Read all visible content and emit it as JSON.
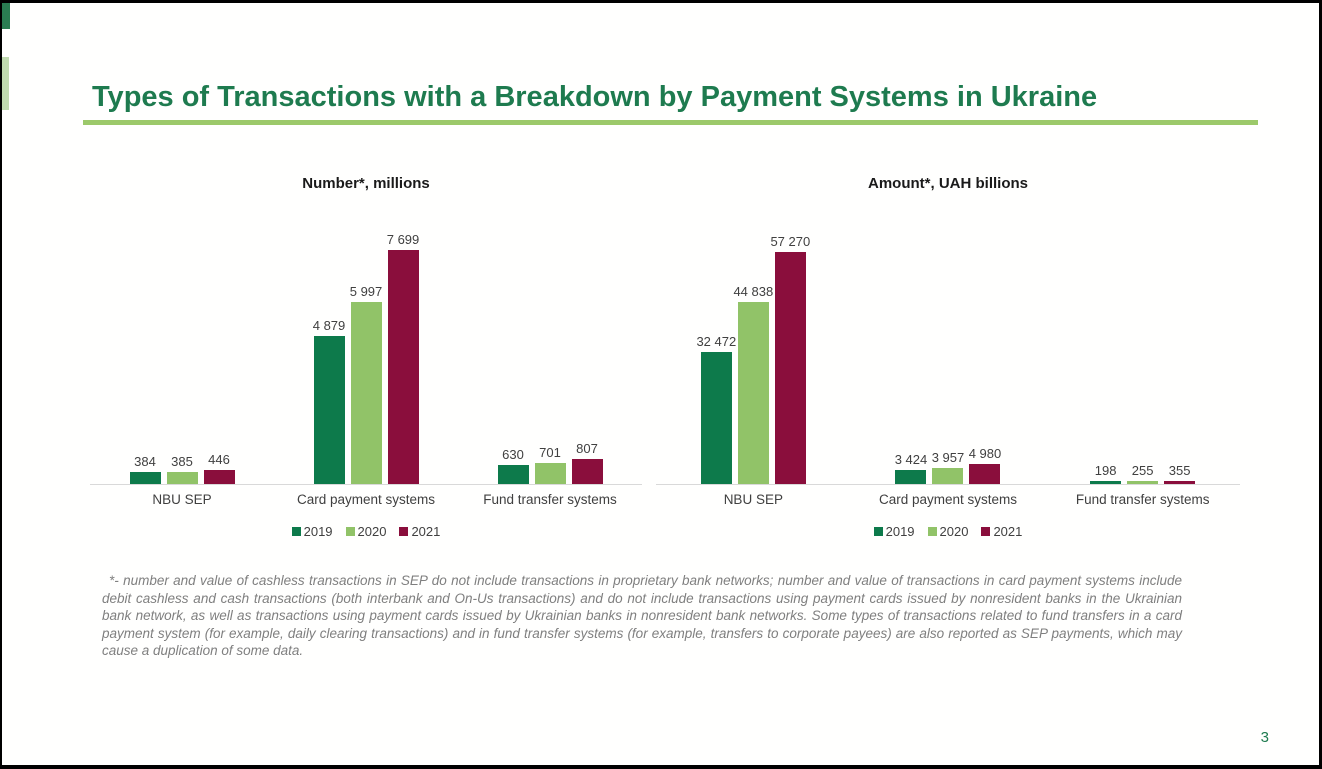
{
  "slide": {
    "title": "Types of Transactions with a Breakdown by Payment Systems in Ukraine",
    "page_number": "3",
    "footnote": "*- number and value of cashless transactions in SEP do not include transactions in proprietary bank networks; number and value of transactions in card payment systems include debit cashless and cash transactions (both interbank and On-Us transactions) and do not include transactions using payment cards issued by nonresident banks in the Ukrainian bank network, as well as transactions using payment cards issued by Ukrainian banks in nonresident bank networks. Some types of transactions related to fund transfers in a card payment system (for example, daily clearing transactions) and in fund transfer systems (for example, transfers to corporate payees) are also reported as SEP payments, which may cause a duplication of some data."
  },
  "colors": {
    "title_green": "#1e7b4f",
    "underline_green": "#9cc96a",
    "corner_accent_green": "#2a7d52",
    "edge_accent_green": "#c0dab0",
    "series_2019": "#0d7a4b",
    "series_2020": "#91c368",
    "series_2021": "#8a0e3c",
    "axis_line": "#d9d9d9",
    "label_gray": "#404040",
    "footnote_gray": "#7f7f7f"
  },
  "chart_data": [
    {
      "type": "bar",
      "id": "number-chart",
      "title": "Number*, millions",
      "categories": [
        "NBU SEP",
        "Card payment systems",
        "Fund transfer systems"
      ],
      "series": [
        {
          "name": "2019",
          "color": "#0d7a4b",
          "values": [
            384,
            4879,
            630
          ],
          "labels": [
            "384",
            "4 879",
            "630"
          ]
        },
        {
          "name": "2020",
          "color": "#91c368",
          "values": [
            385,
            5997,
            701
          ],
          "labels": [
            "385",
            "5 997",
            "701"
          ]
        },
        {
          "name": "2021",
          "color": "#8a0e3c",
          "values": [
            446,
            7699,
            807
          ],
          "labels": [
            "446",
            "7 699",
            "807"
          ]
        }
      ],
      "xlabel": "",
      "ylabel": "",
      "ylim": [
        0,
        8000
      ],
      "grid": false,
      "legend_position": "bottom"
    },
    {
      "type": "bar",
      "id": "amount-chart",
      "title": "Amount*, UAH billions",
      "categories": [
        "NBU SEP",
        "Card payment systems",
        "Fund transfer systems"
      ],
      "series": [
        {
          "name": "2019",
          "color": "#0d7a4b",
          "values": [
            32472,
            3424,
            198
          ],
          "labels": [
            "32 472",
            "3 424",
            "198"
          ]
        },
        {
          "name": "2020",
          "color": "#91c368",
          "values": [
            44838,
            3957,
            255
          ],
          "labels": [
            "44 838",
            "3 957",
            "255"
          ]
        },
        {
          "name": "2021",
          "color": "#8a0e3c",
          "values": [
            57270,
            4980,
            355
          ],
          "labels": [
            "57 270",
            "4 980",
            "355"
          ]
        }
      ],
      "xlabel": "",
      "ylabel": "",
      "ylim": [
        0,
        60000
      ],
      "grid": false,
      "legend_position": "bottom"
    }
  ]
}
